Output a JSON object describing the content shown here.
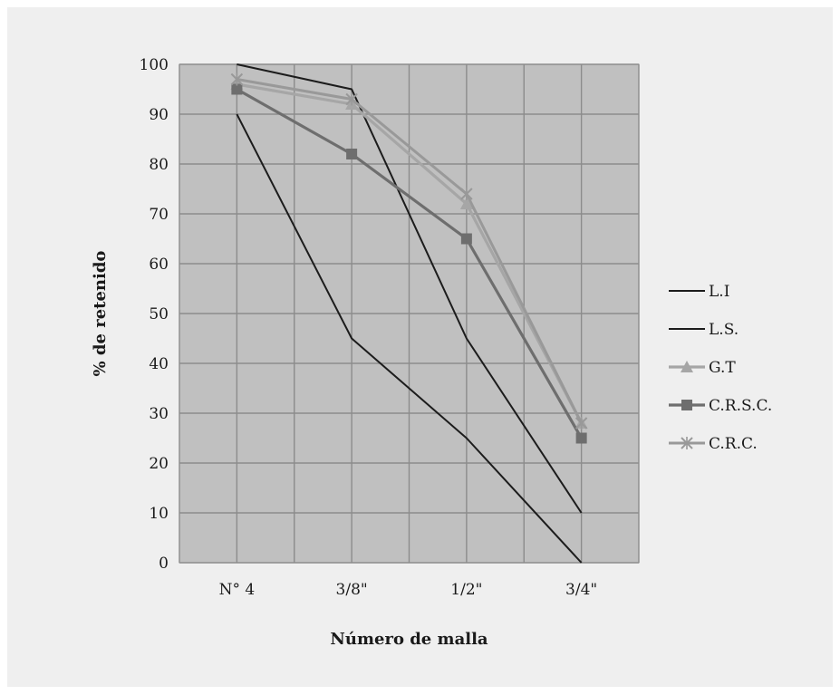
{
  "chart_data": {
    "type": "line",
    "title": "",
    "xlabel": "Número de malla",
    "ylabel": "% de retenido",
    "categories": [
      "N° 4",
      "3/8\"",
      "1/2\"",
      "3/4\""
    ],
    "ylim": [
      0,
      100
    ],
    "yticks": [
      0,
      10,
      20,
      30,
      40,
      50,
      60,
      70,
      80,
      90,
      100
    ],
    "grid": true,
    "legend_position": "right",
    "series": [
      {
        "name": "L.I",
        "values": [
          90,
          45,
          25,
          0
        ],
        "color": "#1c1c1c",
        "marker": "none"
      },
      {
        "name": "L.S.",
        "values": [
          100,
          95,
          45,
          10
        ],
        "color": "#1c1c1c",
        "marker": "none"
      },
      {
        "name": "G.T",
        "values": [
          96,
          92,
          72,
          28
        ],
        "color": "#a6a6a6",
        "marker": "triangle"
      },
      {
        "name": "C.R.S.C.",
        "values": [
          95,
          82,
          65,
          25
        ],
        "color": "#6e6e6e",
        "marker": "square"
      },
      {
        "name": "C.R.C.",
        "values": [
          97,
          93,
          74,
          28
        ],
        "color": "#999999",
        "marker": "x"
      }
    ],
    "colors": {
      "plot_background": "#c0c0c0",
      "grid": "#8c8c8c",
      "frame_background": "#efefef"
    }
  }
}
